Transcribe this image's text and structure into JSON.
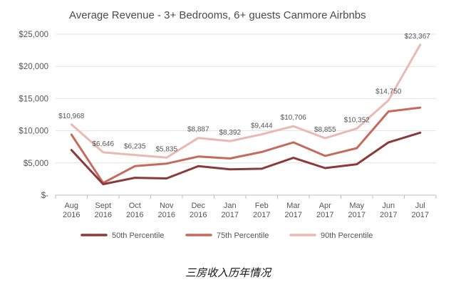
{
  "chart_data": {
    "type": "line",
    "title": "Average Revenue - 3+ Bedrooms, 6+ guests Canmore Airbnbs",
    "xlabel": "",
    "ylabel": "",
    "categories": [
      [
        "Aug",
        "2016"
      ],
      [
        "Sept",
        "2016"
      ],
      [
        "Oct",
        "2016"
      ],
      [
        "Nov",
        "2016"
      ],
      [
        "Dec",
        "2016"
      ],
      [
        "Jan",
        "2017"
      ],
      [
        "Feb",
        "2017"
      ],
      [
        "Mar",
        "2017"
      ],
      [
        "Apr",
        "2017"
      ],
      [
        "May",
        "2017"
      ],
      [
        "Jun",
        "2017"
      ],
      [
        "Jul",
        "2017"
      ]
    ],
    "ylim": [
      0,
      25000
    ],
    "yticks": [
      0,
      5000,
      10000,
      15000,
      20000,
      25000
    ],
    "ytick_labels": [
      "$-",
      "$5,000",
      "$10,000",
      "$15,000",
      "$20,000",
      "$25,000"
    ],
    "grid": true,
    "legend_position": "bottom",
    "series": [
      {
        "name": "50th Percentile",
        "color": "#8b3a3a",
        "values": [
          7000,
          1700,
          2700,
          2600,
          4500,
          4000,
          4100,
          5800,
          4200,
          4800,
          8200,
          9700
        ]
      },
      {
        "name": "75th Percentile",
        "color": "#c56a5c",
        "values": [
          9400,
          1900,
          4500,
          4900,
          6000,
          5700,
          6700,
          8200,
          6100,
          7300,
          13000,
          13600
        ]
      },
      {
        "name": "90th Percentile",
        "color": "#eab9b2",
        "values": [
          10968,
          6646,
          6235,
          5835,
          8887,
          8392,
          9444,
          10706,
          8855,
          10352,
          14750,
          23367
        ],
        "data_labels": [
          "$10,968",
          "$6,646",
          "$6,235",
          "$5,835",
          "$8,887",
          "$8,392",
          "$9,444",
          "$10,706",
          "$8,855",
          "$10,352",
          "$14,750",
          "$23,367"
        ]
      }
    ]
  },
  "caption": "三房收入历年情况"
}
